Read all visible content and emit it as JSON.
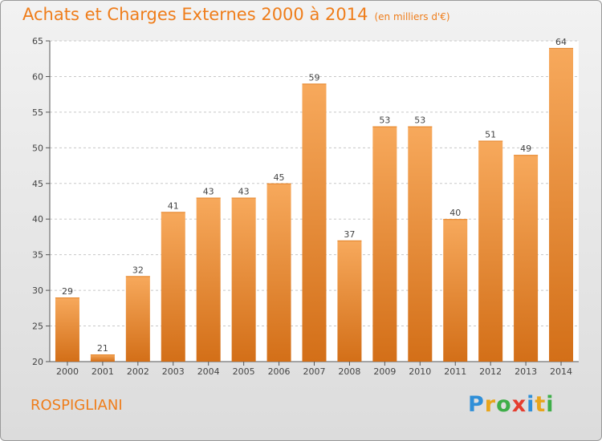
{
  "page": {
    "title": "Achats et Charges Externes 2000 à 2014",
    "subtitle": "(en milliers d'€)",
    "commune": "ROSPIGLIANI",
    "logo": {
      "letters": [
        "P",
        "r",
        "o",
        "x",
        "i",
        "t",
        "i"
      ],
      "colors": [
        "#2f8fd8",
        "#e8a51c",
        "#3fae49",
        "#e53d2f",
        "#2f8fd8",
        "#e8a51c",
        "#3fae49"
      ]
    }
  },
  "colors": {
    "accent": "#ef7d1a",
    "bar_top": "#f7a95c",
    "bar_bottom": "#d36f18",
    "grid": "#c8c8c8"
  },
  "chart_data": {
    "type": "bar",
    "title": "Achats et Charges Externes 2000 à 2014",
    "subtitle": "(en milliers d'€)",
    "categories": [
      "2000",
      "2001",
      "2002",
      "2003",
      "2004",
      "2005",
      "2006",
      "2007",
      "2008",
      "2009",
      "2010",
      "2011",
      "2012",
      "2013",
      "2014"
    ],
    "values": [
      29,
      21,
      32,
      41,
      43,
      43,
      45,
      59,
      37,
      53,
      53,
      40,
      51,
      49,
      64
    ],
    "ylim": [
      20,
      65
    ],
    "yticks": [
      20,
      25,
      30,
      35,
      40,
      45,
      50,
      55,
      60,
      65
    ],
    "grid": true,
    "data_labels": true
  }
}
